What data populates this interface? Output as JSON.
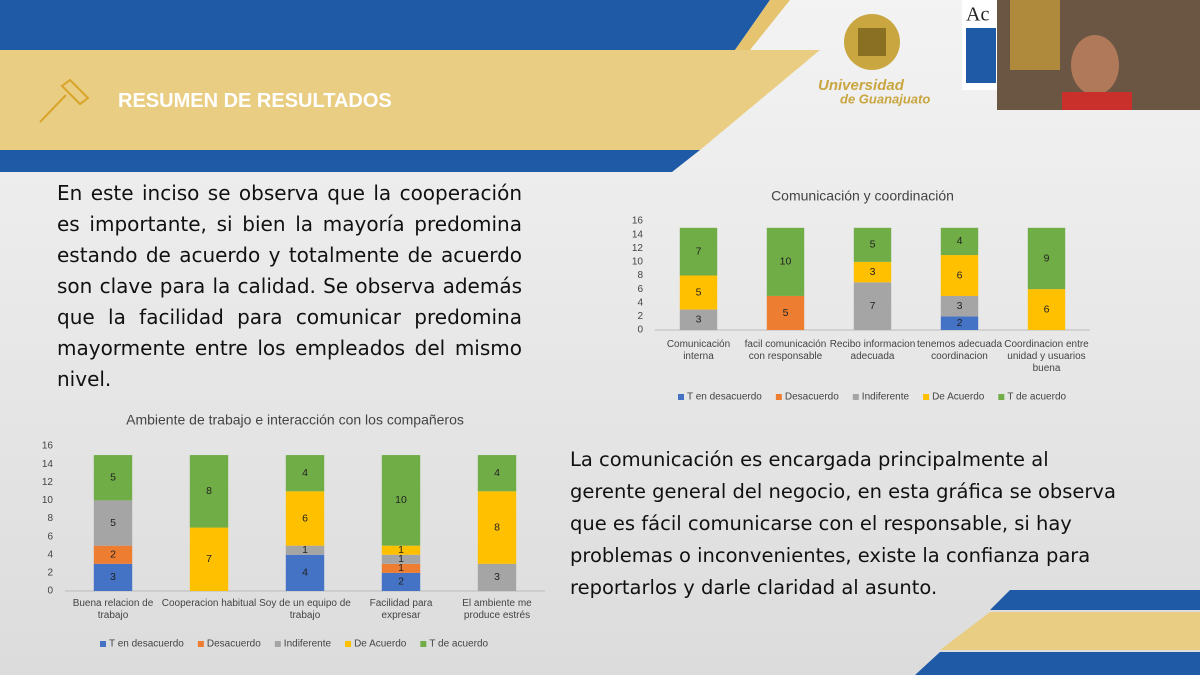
{
  "header": {
    "title": "RESUMEN DE RESULTADOS"
  },
  "logo": {
    "name": "Universidad",
    "sub": "de Guanajuato",
    "corner": "Ac"
  },
  "paragraphs": [
    "En este inciso se observa que la cooperación es importante, si bien la mayoría predomina estando de acuerdo y totalmente de acuerdo son clave para la calidad. Se observa además que la facilidad para comunicar predomina mayormente entre los empleados del mismo nivel.",
    "La comunicación es encargada principalmente al gerente general del negocio, en esta gráfica se observa que es fácil comunicarse con el responsable, si hay problemas o inconvenientes, existe la confianza para reportarlos y darle claridad al asunto."
  ],
  "chart_data": [
    {
      "type": "stacked_bar",
      "title": "Comunicación y coordinación",
      "categories": [
        "Comunicación interna",
        "facil comunicación con responsable",
        "Recibo informacion adecuada",
        "tenemos adecuada coordinacion",
        "Coordinacion entre unidad y usuarios buena"
      ],
      "series": [
        {
          "name": "T en desacuerdo",
          "color": "#4472c4",
          "values": [
            0,
            0,
            0,
            2,
            0
          ]
        },
        {
          "name": "Desacuerdo",
          "color": "#ed7d31",
          "values": [
            0,
            5,
            0,
            0,
            0
          ]
        },
        {
          "name": "Indiferente",
          "color": "#a5a5a5",
          "values": [
            3,
            0,
            7,
            3,
            0
          ]
        },
        {
          "name": "De Acuerdo",
          "color": "#ffc000",
          "values": [
            5,
            0,
            3,
            6,
            6
          ]
        },
        {
          "name": "T de acuerdo",
          "color": "#70ad47",
          "values": [
            7,
            10,
            5,
            4,
            9
          ]
        }
      ],
      "ylim": [
        0,
        16
      ],
      "yticks": [
        0,
        2,
        4,
        6,
        8,
        10,
        12,
        14,
        16
      ],
      "grid": false,
      "legend": "bottom"
    },
    {
      "type": "stacked_bar",
      "title": "Ambiente de trabajo e interacción con los compañeros",
      "categories": [
        "Buena relacion de trabajo",
        "Cooperacion habitual",
        "Soy de un equipo de trabajo",
        "Facilidad para expresar",
        "El ambiente me produce estrés"
      ],
      "series": [
        {
          "name": "T en desacuerdo",
          "color": "#4472c4",
          "values": [
            3,
            0,
            4,
            2,
            0
          ]
        },
        {
          "name": "Desacuerdo",
          "color": "#ed7d31",
          "values": [
            2,
            0,
            0,
            1,
            0
          ]
        },
        {
          "name": "Indiferente",
          "color": "#a5a5a5",
          "values": [
            5,
            0,
            1,
            1,
            3
          ]
        },
        {
          "name": "De Acuerdo",
          "color": "#ffc000",
          "values": [
            0,
            7,
            6,
            1,
            8
          ]
        },
        {
          "name": "T de acuerdo",
          "color": "#70ad47",
          "values": [
            5,
            8,
            4,
            10,
            4
          ]
        }
      ],
      "ylim": [
        0,
        16
      ],
      "yticks": [
        0,
        2,
        4,
        6,
        8,
        10,
        12,
        14,
        16
      ],
      "grid": false,
      "legend": "bottom"
    }
  ]
}
